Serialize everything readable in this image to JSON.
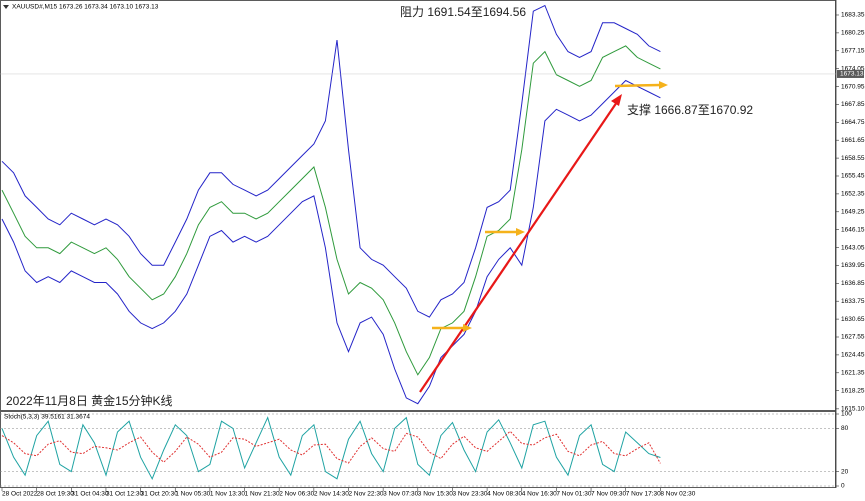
{
  "chart_data": [
    {
      "type": "line",
      "title": "XAUUSD#,M15  1673.26 1673.34 1673.10 1673.13",
      "annotations": [
        "阻力 1691.54至1694.56",
        "支撑 1666.87至1670.92",
        "2022年11月8日  黄金15分钟K线"
      ],
      "current_price": 1673.13,
      "categories": [
        "28 Oct 2022",
        null,
        null,
        "28 Oct 19:30",
        null,
        null,
        "31 Oct 04:30",
        null,
        null,
        "31 Oct 12:30",
        null,
        null,
        "31 Oct 20:30",
        null,
        null,
        "1 Nov 05:30",
        null,
        null,
        "1 Nov 13:30",
        null,
        null,
        "1 Nov 21:30",
        null,
        null,
        "2 Nov 06:30",
        null,
        null,
        "2 Nov 14:30",
        null,
        null,
        "2 Nov 22:30",
        null,
        null,
        "3 Nov 07:30",
        null,
        null,
        "3 Nov 15:30",
        null,
        null,
        "3 Nov 23:30",
        null,
        null,
        "4 Nov 08:30",
        null,
        null,
        "4 Nov 16:30",
        null,
        null,
        "7 Nov 01:30",
        null,
        null,
        "7 Nov 09:30",
        null,
        null,
        "7 Nov 17:30",
        null,
        null,
        "8 Nov 02:30"
      ],
      "series": [
        {
          "color": "#2f9a3c",
          "values": [
            1653,
            1649,
            1645,
            1643,
            1643,
            1642,
            1644,
            1643,
            1642,
            1643,
            1641,
            1638,
            1636,
            1634,
            1635,
            1638,
            1642,
            1647,
            1650,
            1651,
            1649,
            1649,
            1648,
            1649,
            1651,
            1653,
            1655,
            1657,
            1650,
            1641,
            1635,
            1637,
            1636,
            1634,
            1630,
            1625,
            1621,
            1624,
            1629,
            1630,
            1632,
            1638,
            1645,
            1646,
            1648,
            1660,
            1675,
            1677,
            1673,
            1672,
            1671,
            1672,
            1676,
            1677,
            1678,
            1676,
            1675,
            1674
          ]
        },
        {
          "color": "#2424c8",
          "values": [
            1658,
            1656,
            1652,
            1650,
            1648,
            1647,
            1649,
            1648,
            1647,
            1648,
            1647,
            1645,
            1642,
            1640,
            1640,
            1644,
            1648,
            1653,
            1656,
            1656,
            1654,
            1653,
            1652,
            1653,
            1655,
            1657,
            1659,
            1661,
            1665,
            1679,
            1660,
            1643,
            1641,
            1640,
            1638,
            1636,
            1632,
            1631,
            1634,
            1635,
            1637,
            1643,
            1650,
            1651,
            1653,
            1668,
            1684,
            1685,
            1680,
            1677,
            1676,
            1677,
            1682,
            1682,
            1681,
            1680,
            1678,
            1677
          ]
        },
        {
          "color": "#2424c8",
          "values": [
            1648,
            1644,
            1639,
            1637,
            1638,
            1637,
            1639,
            1638,
            1637,
            1637,
            1635,
            1632,
            1630,
            1629,
            1630,
            1632,
            1635,
            1640,
            1645,
            1646,
            1644,
            1645,
            1644,
            1645,
            1647,
            1649,
            1651,
            1652,
            1643,
            1630,
            1625,
            1630,
            1631,
            1628,
            1622,
            1617,
            1616,
            1619,
            1624,
            1626,
            1628,
            1632,
            1638,
            1641,
            1643,
            1640,
            1650,
            1665,
            1667,
            1666,
            1665,
            1666,
            1668,
            1670,
            1672,
            1671,
            1670,
            1669
          ]
        }
      ],
      "ylim": [
        1614.9,
        1685.6
      ],
      "yticks": [
        1683.35,
        1680.25,
        1677.15,
        1674.05,
        1670.95,
        1667.85,
        1664.75,
        1661.65,
        1658.55,
        1655.45,
        1652.35,
        1649.25,
        1646.15,
        1643.05,
        1639.95,
        1636.85,
        1633.75,
        1630.65,
        1627.55,
        1624.45,
        1621.35,
        1618.25,
        {
          "value": 1615.1,
          "label": "1615.10"
        }
      ],
      "grid": false
    },
    {
      "type": "line",
      "title": "Stoch(5,3,3) 39.5161 31.3674",
      "series": [
        {
          "color": "#1fa3a3",
          "values": [
            80,
            40,
            15,
            70,
            90,
            30,
            20,
            85,
            60,
            15,
            75,
            90,
            40,
            10,
            50,
            85,
            70,
            20,
            30,
            90,
            80,
            25,
            60,
            95,
            40,
            15,
            70,
            85,
            20,
            10,
            65,
            90,
            45,
            20,
            80,
            95,
            30,
            15,
            70,
            88,
            50,
            20,
            75,
            92,
            60,
            25,
            85,
            90,
            40,
            15,
            70,
            85,
            30,
            20,
            75,
            60,
            45,
            39.5161
          ]
        },
        {
          "color": "#e03030",
          "line_style": "dashed",
          "values": [
            70,
            60,
            45,
            42,
            58,
            63,
            47,
            45,
            55,
            53,
            50,
            60,
            68,
            47,
            33,
            48,
            68,
            58,
            40,
            47,
            67,
            65,
            55,
            60,
            65,
            50,
            43,
            57,
            58,
            38,
            32,
            55,
            67,
            52,
            48,
            73,
            68,
            47,
            38,
            58,
            69,
            53,
            48,
            62,
            76,
            59,
            57,
            67,
            72,
            48,
            42,
            57,
            62,
            45,
            42,
            52,
            60,
            31.3674
          ]
        }
      ],
      "ylim": [
        0,
        100
      ],
      "yticks": [
        0,
        20,
        80,
        100
      ],
      "grid": true
    }
  ]
}
